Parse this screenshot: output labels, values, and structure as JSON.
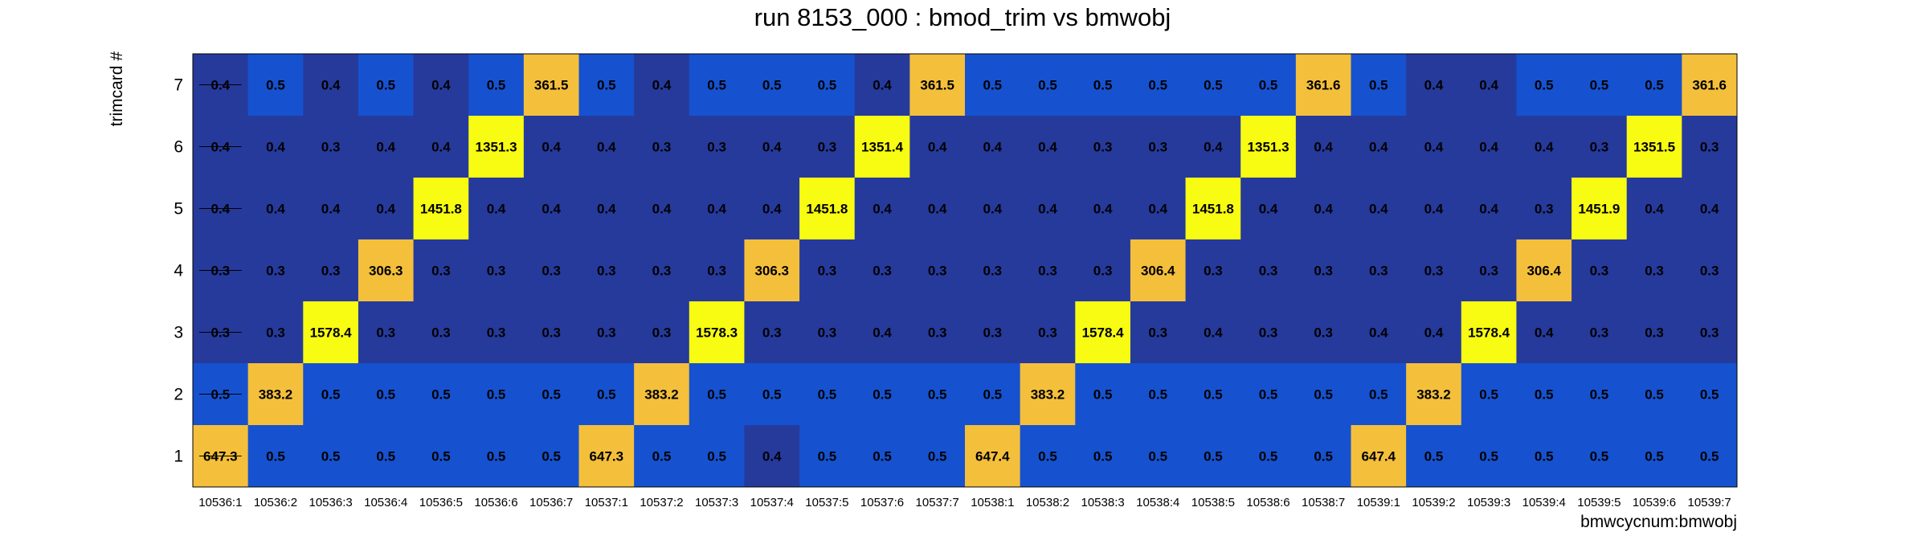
{
  "chart_data": {
    "type": "heatmap",
    "title": "run 8153_000 : bmod_trim vs bmwobj",
    "xlabel": "bmwcycnum:bmwobj",
    "ylabel": "trimcard #",
    "x_categories": [
      "10536:1",
      "10536:2",
      "10536:3",
      "10536:4",
      "10536:5",
      "10536:6",
      "10536:7",
      "10537:1",
      "10537:2",
      "10537:3",
      "10537:4",
      "10537:5",
      "10537:6",
      "10537:7",
      "10538:1",
      "10538:2",
      "10538:3",
      "10538:4",
      "10538:5",
      "10538:6",
      "10538:7",
      "10539:1",
      "10539:2",
      "10539:3",
      "10539:4",
      "10539:5",
      "10539:6",
      "10539:7"
    ],
    "y_categories": [
      "1",
      "2",
      "3",
      "4",
      "5",
      "6",
      "7"
    ],
    "rows": [
      {
        "y": "7",
        "values": [
          "0.4",
          "0.5",
          "0.4",
          "0.5",
          "0.4",
          "0.5",
          "361.5",
          "0.5",
          "0.4",
          "0.5",
          "0.5",
          "0.5",
          "0.4",
          "361.5",
          "0.5",
          "0.5",
          "0.5",
          "0.5",
          "0.5",
          "0.5",
          "361.6",
          "0.5",
          "0.4",
          "0.4",
          "0.5",
          "0.5",
          "0.5",
          "361.6"
        ]
      },
      {
        "y": "6",
        "values": [
          "0.4",
          "0.4",
          "0.3",
          "0.4",
          "0.4",
          "1351.3",
          "0.4",
          "0.4",
          "0.3",
          "0.3",
          "0.4",
          "0.3",
          "1351.4",
          "0.4",
          "0.4",
          "0.4",
          "0.3",
          "0.3",
          "0.4",
          "1351.3",
          "0.4",
          "0.4",
          "0.4",
          "0.4",
          "0.4",
          "0.3",
          "1351.5",
          "0.3"
        ]
      },
      {
        "y": "5",
        "values": [
          "0.4",
          "0.4",
          "0.4",
          "0.4",
          "1451.8",
          "0.4",
          "0.4",
          "0.4",
          "0.4",
          "0.4",
          "0.4",
          "1451.8",
          "0.4",
          "0.4",
          "0.4",
          "0.4",
          "0.4",
          "0.4",
          "1451.8",
          "0.4",
          "0.4",
          "0.4",
          "0.4",
          "0.4",
          "0.3",
          "1451.9",
          "0.4",
          "0.4"
        ]
      },
      {
        "y": "4",
        "values": [
          "0.3",
          "0.3",
          "0.3",
          "306.3",
          "0.3",
          "0.3",
          "0.3",
          "0.3",
          "0.3",
          "0.3",
          "306.3",
          "0.3",
          "0.3",
          "0.3",
          "0.3",
          "0.3",
          "0.3",
          "306.4",
          "0.3",
          "0.3",
          "0.3",
          "0.3",
          "0.3",
          "0.3",
          "306.4",
          "0.3",
          "0.3",
          "0.3"
        ]
      },
      {
        "y": "3",
        "values": [
          "0.3",
          "0.3",
          "1578.4",
          "0.3",
          "0.3",
          "0.3",
          "0.3",
          "0.3",
          "0.3",
          "1578.3",
          "0.3",
          "0.3",
          "0.4",
          "0.3",
          "0.3",
          "0.3",
          "1578.4",
          "0.3",
          "0.4",
          "0.3",
          "0.3",
          "0.4",
          "0.4",
          "1578.4",
          "0.4",
          "0.3",
          "0.3",
          "0.3"
        ]
      },
      {
        "y": "2",
        "values": [
          "0.5",
          "383.2",
          "0.5",
          "0.5",
          "0.5",
          "0.5",
          "0.5",
          "0.5",
          "383.2",
          "0.5",
          "0.5",
          "0.5",
          "0.5",
          "0.5",
          "0.5",
          "383.2",
          "0.5",
          "0.5",
          "0.5",
          "0.5",
          "0.5",
          "0.5",
          "383.2",
          "0.5",
          "0.5",
          "0.5",
          "0.5",
          "0.5"
        ]
      },
      {
        "y": "1",
        "values": [
          "647.3",
          "0.5",
          "0.5",
          "0.5",
          "0.5",
          "0.5",
          "0.5",
          "647.3",
          "0.5",
          "0.5",
          "0.4",
          "0.5",
          "0.5",
          "0.5",
          "647.4",
          "0.5",
          "0.5",
          "0.5",
          "0.5",
          "0.5",
          "0.5",
          "647.4",
          "0.5",
          "0.5",
          "0.5",
          "0.5",
          "0.5",
          "0.5"
        ]
      }
    ],
    "colors": {
      "low_dark": "#263a9c",
      "low": "#1652cf",
      "mid": "#f4bf3b",
      "high": "#f8fb12"
    },
    "grid": false,
    "legend": "none"
  }
}
